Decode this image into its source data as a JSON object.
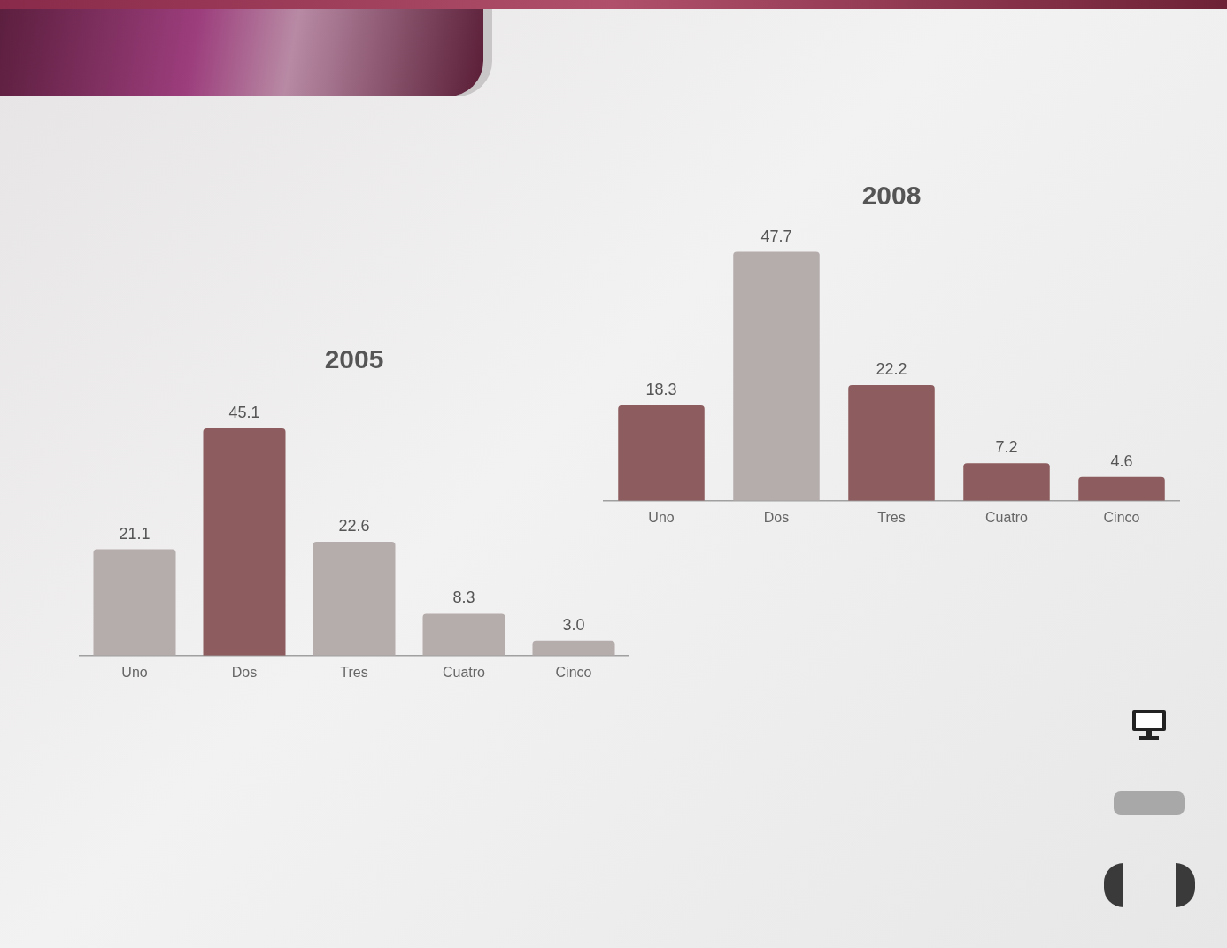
{
  "chart_data": [
    {
      "type": "bar",
      "title": "2005",
      "categories": [
        "Uno",
        "Dos",
        "Tres",
        "Cuatro",
        "Cinco"
      ],
      "values": [
        21.1,
        45.1,
        22.6,
        8.3,
        3.0
      ],
      "value_labels": [
        "21.1",
        "45.1",
        "22.6",
        "8.3",
        "3.0"
      ],
      "colors": [
        "#b5acac",
        "#8c5c5e",
        "#b5acac",
        "#b5acac",
        "#b5acac"
      ]
    },
    {
      "type": "bar",
      "title": "2008",
      "categories": [
        "Uno",
        "Dos",
        "Tres",
        "Cuatro",
        "Cinco"
      ],
      "values": [
        18.3,
        47.7,
        22.2,
        7.2,
        4.6
      ],
      "value_labels": [
        "18.3",
        "47.7",
        "22.2",
        "7.2",
        "4.6"
      ],
      "colors": [
        "#8c5c5e",
        "#b5acac",
        "#8c5c5e",
        "#8c5c5e",
        "#8c5c5e"
      ]
    }
  ]
}
